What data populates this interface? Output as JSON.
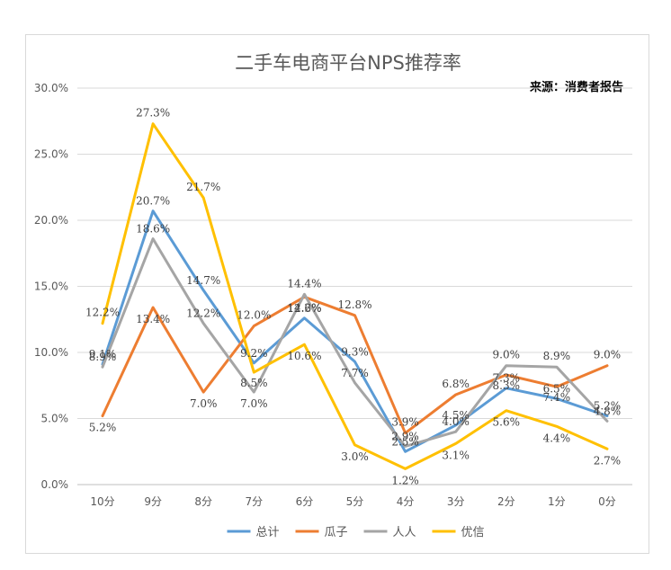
{
  "chart_data": {
    "type": "line",
    "title": "二手车电商平台NPS推荐率",
    "source": "来源：消费者报告",
    "categories": [
      "10分",
      "9分",
      "8分",
      "7分",
      "6分",
      "5分",
      "4分",
      "3分",
      "2分",
      "1分",
      "0分"
    ],
    "y_ticks": [
      "0.0%",
      "5.0%",
      "10.0%",
      "15.0%",
      "20.0%",
      "25.0%",
      "30.0%"
    ],
    "ylim": [
      0,
      30
    ],
    "grid": true,
    "legend_position": "bottom",
    "series": [
      {
        "name": "总计",
        "color": "#5b9bd5",
        "values": [
          9.1,
          20.7,
          14.7,
          9.2,
          12.6,
          9.3,
          2.5,
          4.5,
          7.3,
          6.5,
          5.2
        ],
        "labels": [
          "9.1%",
          "20.7%",
          "14.7%",
          "9.2%",
          "12.6%",
          "9.3%",
          "2.5%",
          "4.5%",
          "7.3%",
          "6.5%",
          "5.2%"
        ]
      },
      {
        "name": "瓜子",
        "color": "#ed7d31",
        "values": [
          5.2,
          13.4,
          7.0,
          12.0,
          14.2,
          12.8,
          3.9,
          6.8,
          8.3,
          7.4,
          9.0
        ],
        "labels": [
          "5.2%",
          "13.4%",
          "7.0%",
          "12.0%",
          "14.2%",
          "12.8%",
          "3.9%",
          "6.8%",
          "8.3%",
          "7.4%",
          "9.0%"
        ]
      },
      {
        "name": "人人",
        "color": "#a5a5a5",
        "values": [
          8.9,
          18.6,
          12.2,
          7.0,
          14.4,
          7.7,
          2.9,
          4.0,
          9.0,
          8.9,
          4.8
        ],
        "labels": [
          "8.9%",
          "18.6%",
          "12.2%",
          "7.0%",
          "14.4%",
          "7.7%",
          "2.9%",
          "4.0%",
          "9.0%",
          "8.9%",
          "4.8%"
        ]
      },
      {
        "name": "优信",
        "color": "#ffc000",
        "values": [
          12.2,
          27.3,
          21.7,
          8.5,
          10.6,
          3.0,
          1.2,
          3.1,
          5.6,
          4.4,
          2.7
        ],
        "labels": [
          "12.2%",
          "27.3%",
          "21.7%",
          "8.5%",
          "10.6%",
          "3.0%",
          "1.2%",
          "3.1%",
          "5.6%",
          "4.4%",
          "2.7%"
        ]
      }
    ]
  }
}
